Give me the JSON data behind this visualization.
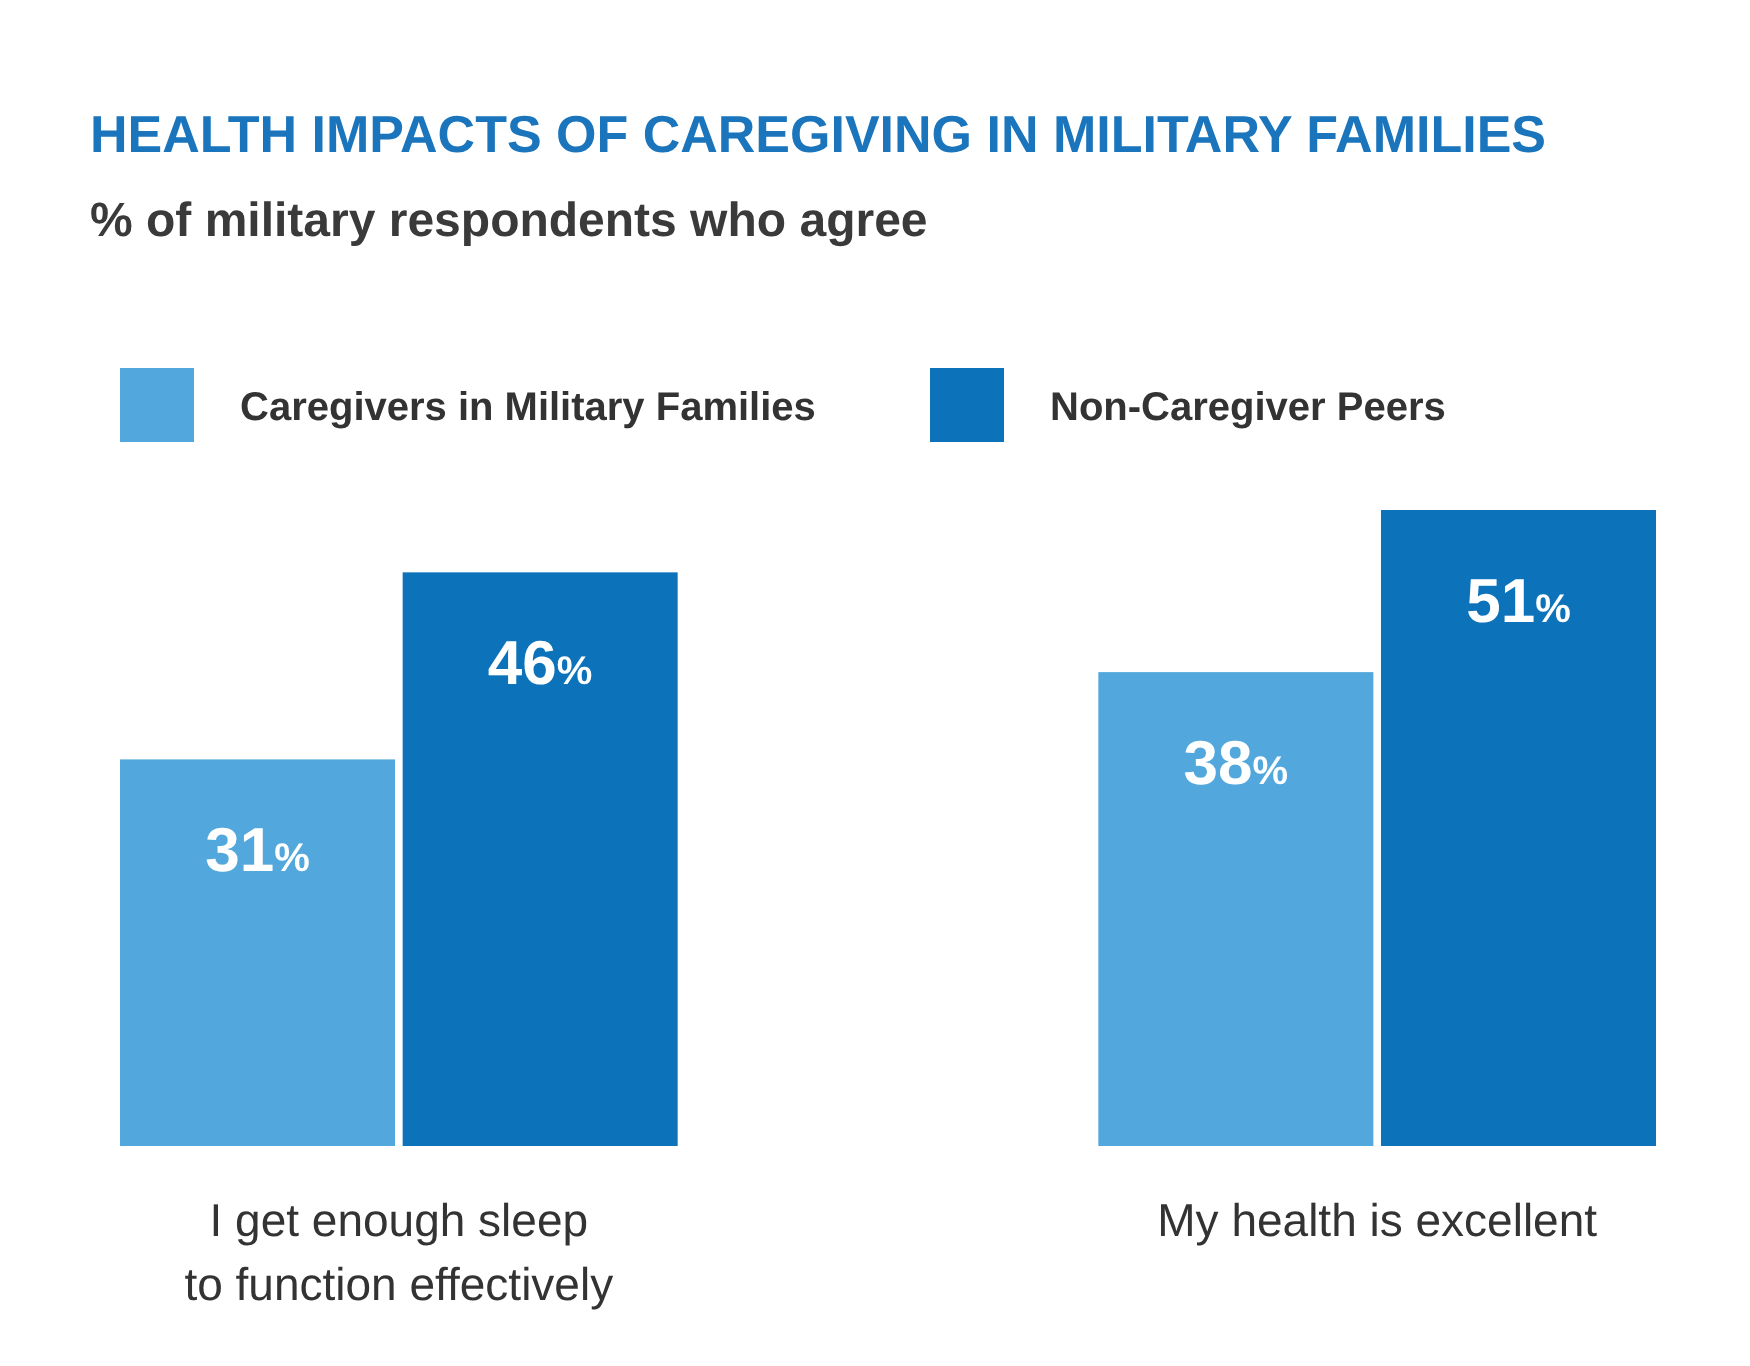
{
  "chart_data": {
    "type": "bar",
    "title": "HEALTH IMPACTS OF CAREGIVING IN MILITARY FAMILIES",
    "subtitle": "% of military respondents who agree",
    "categories": [
      "I get enough sleep\nto function effectively",
      "My health is excellent"
    ],
    "series": [
      {
        "name": "Caregivers in Military Families",
        "color": "#52a8dc",
        "values": [
          31,
          38
        ],
        "value_labels": [
          "31%",
          "38%"
        ]
      },
      {
        "name": "Non-Caregiver Peers",
        "color": "#0c72ba",
        "values": [
          46,
          51
        ],
        "value_labels": [
          "46%",
          "51%"
        ]
      }
    ],
    "legend": "top left"
  }
}
